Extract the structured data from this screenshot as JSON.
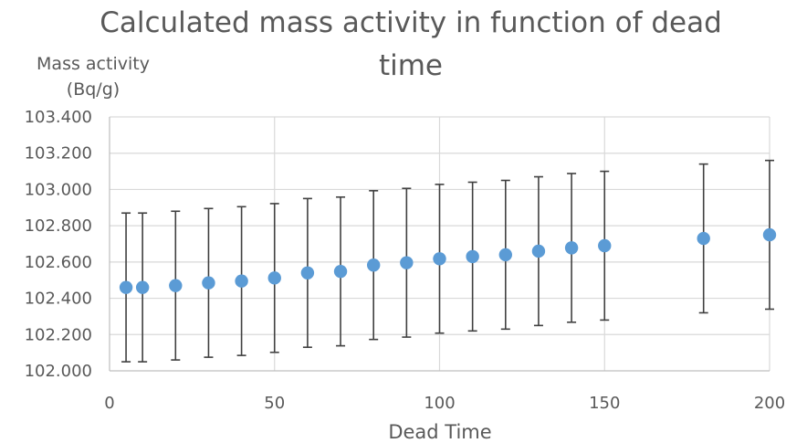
{
  "chart_data": {
    "type": "scatter",
    "title_lines": [
      "Calculated mass activity in function of dead",
      "time"
    ],
    "ylabel_lines": [
      "Mass activity",
      "(Bq/g)"
    ],
    "xlabel": "Dead Time",
    "xlim": [
      0,
      200
    ],
    "ylim": [
      102.0,
      103.4
    ],
    "x_ticks": [
      0,
      50,
      100,
      150,
      200
    ],
    "x_tick_labels": [
      "0",
      "50",
      "100",
      "150",
      "200"
    ],
    "y_ticks": [
      102.0,
      102.2,
      102.4,
      102.6,
      102.8,
      103.0,
      103.2,
      103.4
    ],
    "y_tick_labels": [
      "102.000",
      "102.200",
      "102.400",
      "102.600",
      "102.800",
      "103.000",
      "103.200",
      "103.400"
    ],
    "grid": true,
    "legend": "none",
    "marker_color": "#5b9bd5",
    "error_bar_color": "#404040",
    "x": [
      5,
      10,
      20,
      30,
      40,
      50,
      60,
      70,
      80,
      90,
      100,
      110,
      120,
      130,
      140,
      150,
      180,
      200
    ],
    "y": [
      102.46,
      102.46,
      102.47,
      102.485,
      102.495,
      102.512,
      102.54,
      102.548,
      102.583,
      102.596,
      102.618,
      102.63,
      102.64,
      102.66,
      102.678,
      102.69,
      102.73,
      102.75
    ],
    "error": [
      0.41,
      0.41,
      0.41,
      0.41,
      0.41,
      0.41,
      0.41,
      0.41,
      0.41,
      0.41,
      0.41,
      0.41,
      0.41,
      0.41,
      0.41,
      0.41,
      0.41,
      0.41
    ]
  }
}
